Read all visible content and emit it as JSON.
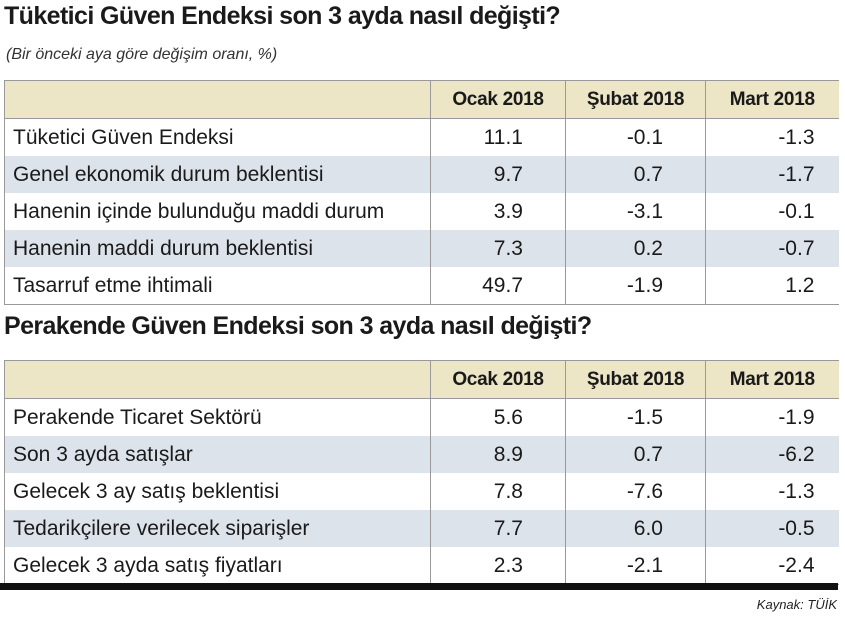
{
  "title": "Tüketici Güven Endeksi son 3 ayda nasıl değişti?",
  "subtitle": "(Bir önceki aya göre değişim oranı, %)",
  "tables": [
    {
      "columns": [
        "Ocak 2018",
        "Şubat 2018",
        "Mart 2018"
      ],
      "rows": [
        [
          "Tüketici Güven Endeksi",
          "11.1",
          "-0.1",
          "-1.3"
        ],
        [
          "Genel ekonomik durum beklentisi",
          "9.7",
          "0.7",
          "-1.7"
        ],
        [
          "Hanenin içinde bulunduğu maddi durum",
          "3.9",
          "-3.1",
          "-0.1"
        ],
        [
          "Hanenin maddi durum beklentisi",
          "7.3",
          "0.2",
          "-0.7"
        ],
        [
          "Tasarruf etme ihtimali",
          "49.7",
          "-1.9",
          "1.2"
        ]
      ]
    },
    {
      "title": "Perakende Güven Endeksi son 3 ayda nasıl değişti?",
      "columns": [
        "Ocak 2018",
        "Şubat 2018",
        "Mart 2018"
      ],
      "rows": [
        [
          "Perakende Ticaret Sektörü",
          "5.6",
          "-1.5",
          "-1.9"
        ],
        [
          "Son 3 ayda satışlar",
          "8.9",
          "0.7",
          "-6.2"
        ],
        [
          "Gelecek 3 ay satış beklentisi",
          "7.8",
          "-7.6",
          "-1.3"
        ],
        [
          "Tedarikçilere verilecek siparişler",
          "7.7",
          "6.0",
          "-0.5"
        ],
        [
          "Gelecek 3 ayda satış fiyatları",
          "2.3",
          "-2.1",
          "-2.4"
        ]
      ]
    }
  ],
  "source": "Kaynak: TÜİK"
}
